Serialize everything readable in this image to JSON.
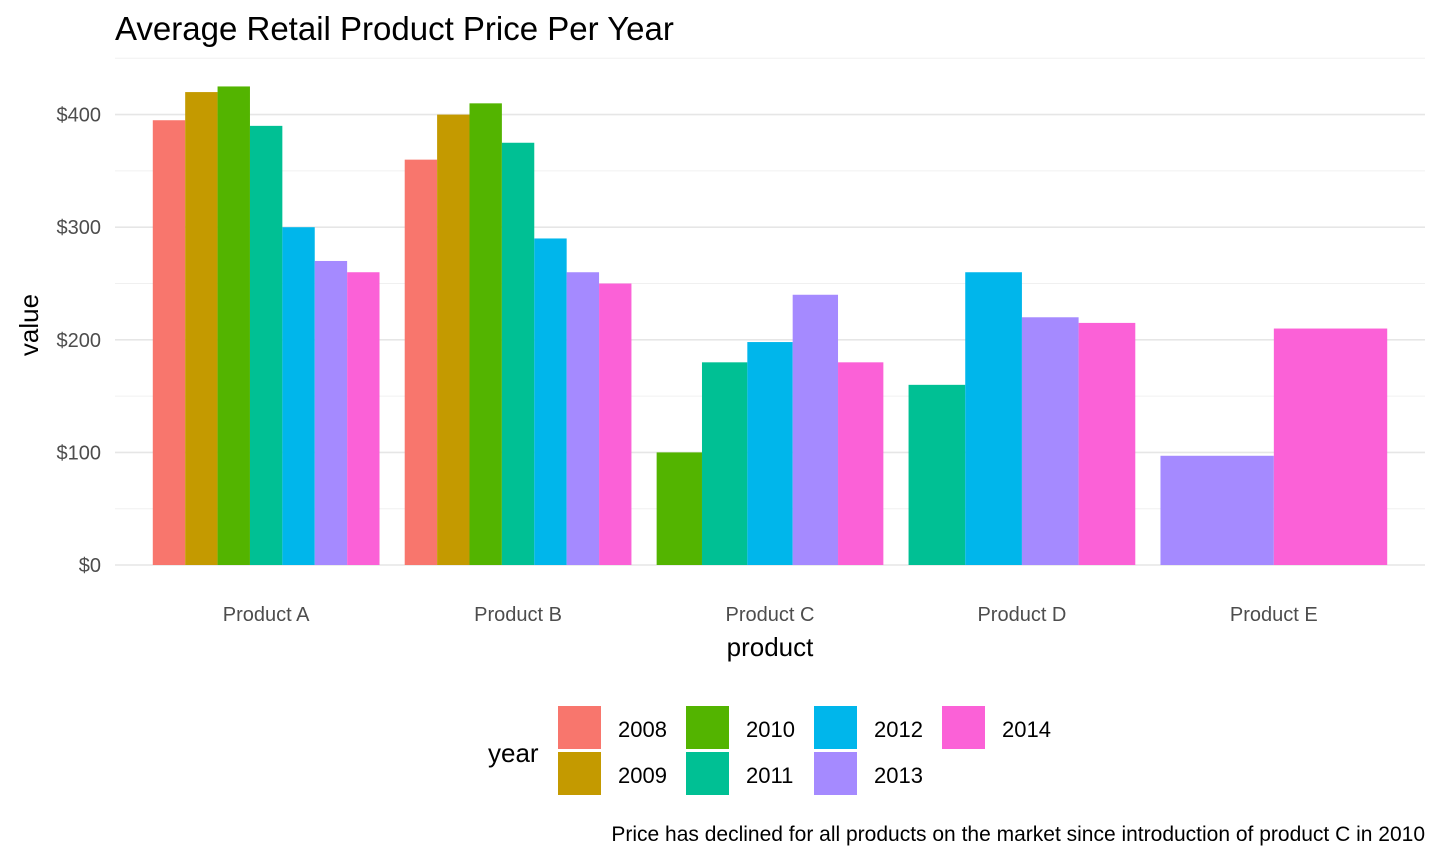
{
  "chart_data": {
    "type": "bar",
    "title": "Average Retail Product Price Per Year",
    "caption": "Price has declined for all products on the market since introduction of product C in 2010",
    "xlabel": "product",
    "ylabel": "value",
    "ylim": [
      0,
      430
    ],
    "y_ticks": [
      0,
      100,
      200,
      300,
      400
    ],
    "y_tick_labels": [
      "$0",
      "$100",
      "$200",
      "$300",
      "$400"
    ],
    "grid": true,
    "legend_title": "year",
    "legend_position": "bottom",
    "categories": [
      "Product A",
      "Product B",
      "Product C",
      "Product D",
      "Product E"
    ],
    "series": [
      {
        "name": "2008",
        "color": "#F8766D",
        "values": [
          395,
          360,
          null,
          null,
          null
        ]
      },
      {
        "name": "2009",
        "color": "#C49A00",
        "values": [
          420,
          400,
          null,
          null,
          null
        ]
      },
      {
        "name": "2010",
        "color": "#53B400",
        "values": [
          425,
          410,
          100,
          null,
          null
        ]
      },
      {
        "name": "2011",
        "color": "#00C094",
        "values": [
          390,
          375,
          180,
          160,
          null
        ]
      },
      {
        "name": "2012",
        "color": "#00B6EB",
        "values": [
          300,
          290,
          198,
          260,
          null
        ]
      },
      {
        "name": "2013",
        "color": "#A58AFF",
        "values": [
          270,
          260,
          240,
          220,
          97
        ]
      },
      {
        "name": "2014",
        "color": "#FB61D7",
        "values": [
          260,
          250,
          180,
          215,
          210
        ]
      }
    ]
  }
}
